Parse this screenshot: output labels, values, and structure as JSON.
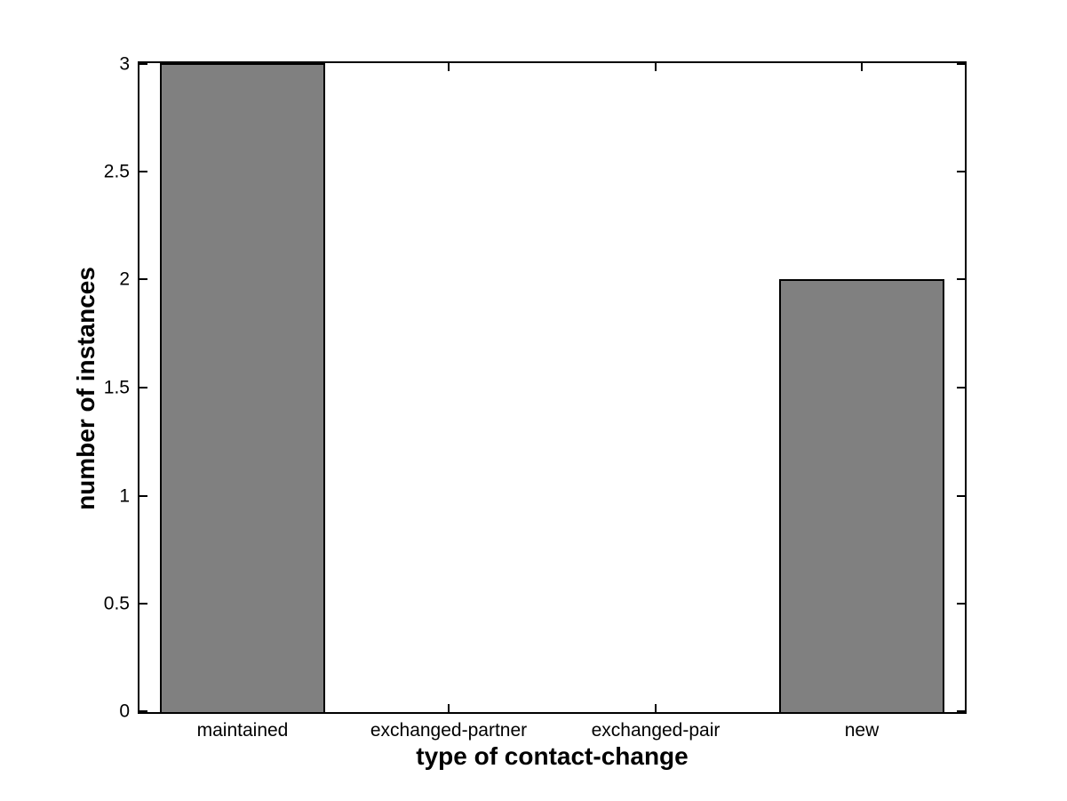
{
  "figure": {
    "background": "#ffffff"
  },
  "chart_data": {
    "type": "bar",
    "categories": [
      "maintained",
      "exchanged-partner",
      "exchanged-pair",
      "new"
    ],
    "values": [
      3,
      0,
      0,
      2
    ],
    "title": "",
    "xlabel": "type of contact-change",
    "ylabel": "number of instances",
    "ylim": [
      0,
      3
    ],
    "yticks": [
      0,
      0.5,
      1,
      1.5,
      2,
      2.5,
      3
    ],
    "ytick_labels": [
      "0",
      "0.5",
      "1",
      "1.5",
      "2",
      "2.5",
      "3"
    ],
    "bar_width_fraction": 0.8,
    "bar_fill": "#808080",
    "bar_edge": "#000000",
    "axis_color": "#000000",
    "text_color": "#000000",
    "grid": false,
    "legend": "none",
    "tick_direction": "in",
    "box": true
  }
}
